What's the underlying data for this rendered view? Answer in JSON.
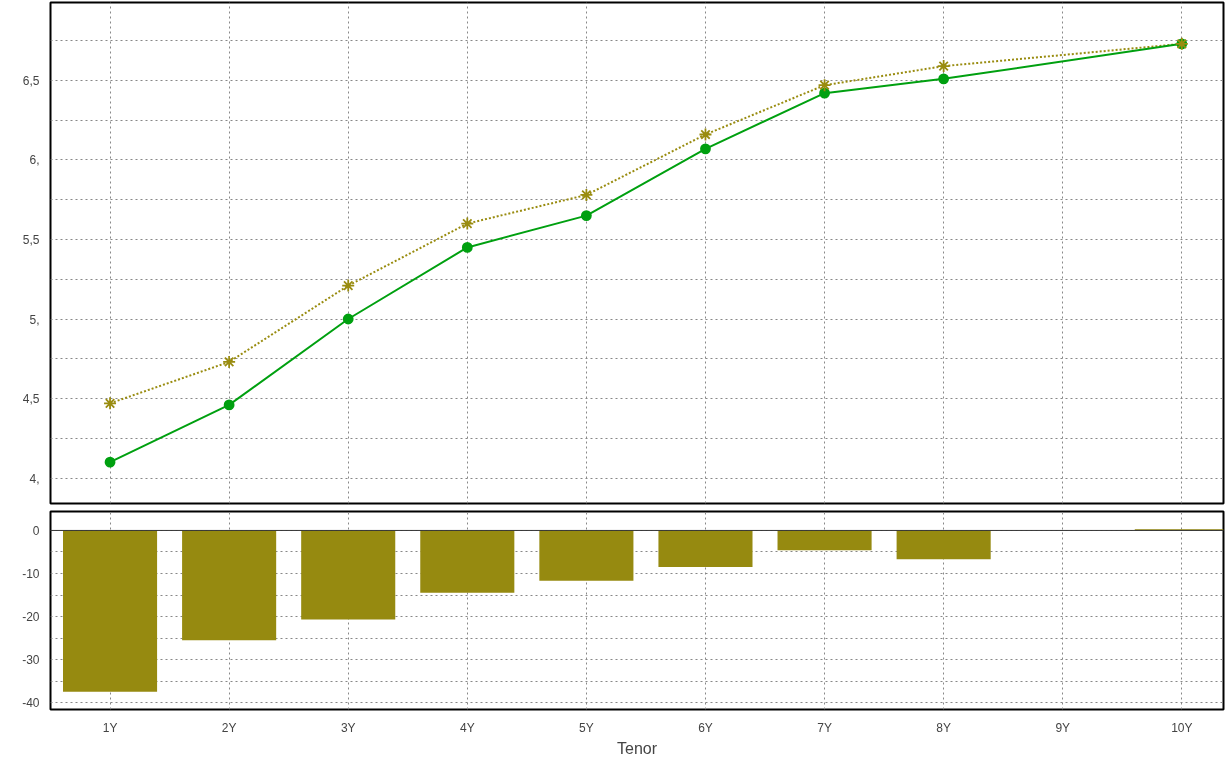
{
  "chart_data": [
    {
      "type": "line",
      "categories": [
        "1Y",
        "2Y",
        "3Y",
        "4Y",
        "5Y",
        "6Y",
        "7Y",
        "8Y",
        "9Y",
        "10Y"
      ],
      "series": [
        {
          "color": "#998c10",
          "marker": "cross",
          "line_style": "dotted",
          "x": [
            "1Y",
            "2Y",
            "3Y",
            "4Y",
            "5Y",
            "6Y",
            "7Y",
            "8Y",
            "10Y"
          ],
          "values": [
            4.47,
            4.73,
            5.21,
            5.6,
            5.78,
            6.16,
            6.47,
            6.59,
            6.73
          ]
        },
        {
          "color": "#00a010",
          "marker": "circle",
          "line_style": "solid",
          "x": [
            "1Y",
            "2Y",
            "3Y",
            "4Y",
            "5Y",
            "6Y",
            "7Y",
            "8Y",
            "10Y"
          ],
          "values": [
            4.1,
            4.46,
            5.0,
            5.45,
            5.65,
            6.07,
            6.42,
            6.51,
            6.73
          ]
        }
      ],
      "ylim": [
        3.84,
        6.99
      ],
      "yticks": [
        {
          "value": 4,
          "label": "4,"
        },
        {
          "value": 4.25,
          "label": null
        },
        {
          "value": 4.5,
          "label": "4,5"
        },
        {
          "value": 4.75,
          "label": null
        },
        {
          "value": 5,
          "label": "5,"
        },
        {
          "value": 5.25,
          "label": null
        },
        {
          "value": 5.5,
          "label": "5,5"
        },
        {
          "value": 5.75,
          "label": null
        },
        {
          "value": 6,
          "label": "6,"
        },
        {
          "value": 6.25,
          "label": null
        },
        {
          "value": 6.5,
          "label": "6,5"
        },
        {
          "value": 6.75,
          "label": null
        }
      ],
      "grid": true,
      "tick_labels": "y"
    },
    {
      "type": "bar",
      "categories": [
        "1Y",
        "2Y",
        "3Y",
        "4Y",
        "5Y",
        "6Y",
        "7Y",
        "8Y",
        "9Y",
        "10Y"
      ],
      "xlabel": "Tenor",
      "series": [
        {
          "color": "#968a10",
          "values": [
            -37.5,
            -25.5,
            -20.7,
            -14.5,
            -11.7,
            -8.5,
            -4.6,
            -6.7,
            null,
            0.3
          ]
        }
      ],
      "ylim": [
        -41.6,
        4.4
      ],
      "yticks": [
        {
          "value": -40,
          "label": "-40"
        },
        {
          "value": -35,
          "label": null
        },
        {
          "value": -30,
          "label": "-30"
        },
        {
          "value": -25,
          "label": null
        },
        {
          "value": -20,
          "label": "-20"
        },
        {
          "value": -15,
          "label": null
        },
        {
          "value": -10,
          "label": "-10"
        },
        {
          "value": -5,
          "label": null
        },
        {
          "value": 0,
          "label": "0"
        }
      ],
      "grid": true
    }
  ]
}
